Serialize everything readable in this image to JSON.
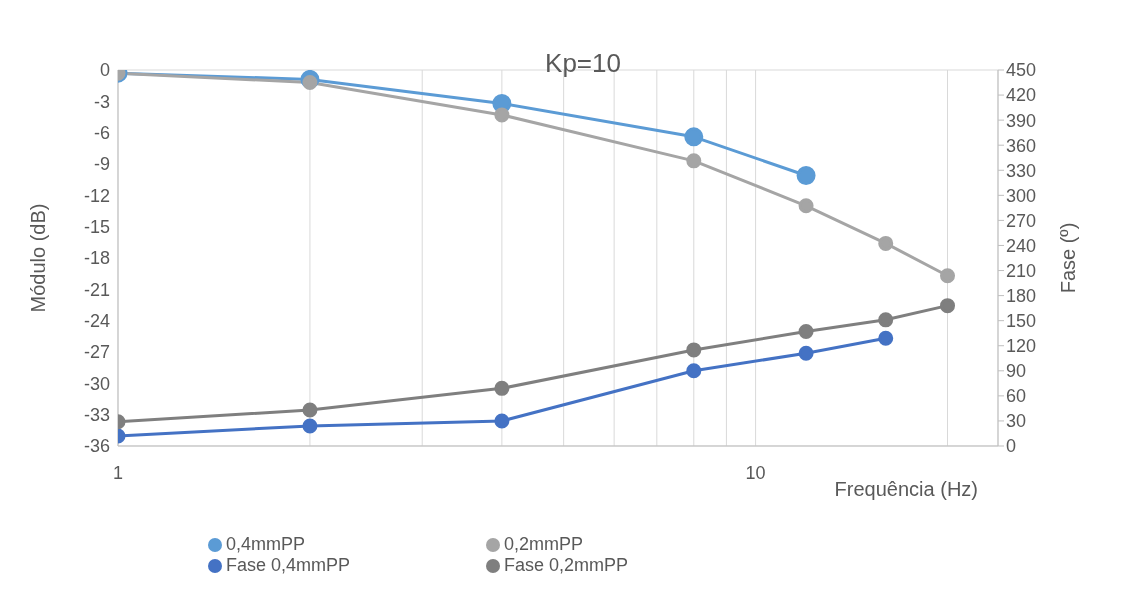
{
  "chart_data": {
    "type": "line",
    "title": "Kp=10",
    "xlabel": "Frequência (Hz)",
    "ylabel": "Módulo (dB)",
    "y2label": "Fase (º)",
    "x": [
      1,
      2,
      4,
      8,
      12,
      16,
      20
    ],
    "log": "x",
    "xlim": [
      1,
      24
    ],
    "xticks": [
      1,
      {
        "value": 2,
        "label": null
      },
      {
        "value": 3,
        "label": null
      },
      {
        "value": 4,
        "label": null
      },
      {
        "value": 5,
        "label": null
      },
      {
        "value": 6,
        "label": null
      },
      {
        "value": 7,
        "label": null
      },
      {
        "value": 8,
        "label": null
      },
      {
        "value": 9,
        "label": null
      },
      10,
      {
        "value": 20,
        "label": null
      }
    ],
    "ylim": [
      -36,
      0
    ],
    "yticks": [
      -36,
      -33,
      -30,
      -27,
      -24,
      -21,
      -18,
      -15,
      -12,
      -9,
      -6,
      -3,
      0
    ],
    "y2lim": [
      0,
      450
    ],
    "y2ticks": [
      0,
      30,
      60,
      90,
      120,
      150,
      180,
      210,
      240,
      270,
      300,
      330,
      360,
      390,
      420,
      450
    ],
    "grid": true,
    "legend": "bottom",
    "marker": "circle",
    "line_style": "solid",
    "series": [
      {
        "name": "0,4mmPP",
        "color": "#5b9bd5",
        "values": [
          -0.3,
          -0.9,
          -3.2,
          -6.4,
          -10.1,
          null,
          null
        ]
      },
      {
        "name": "0,2mmPP",
        "color": "#a5a5a5",
        "values": [
          -0.3,
          -1.2,
          -4.3,
          -8.7,
          -13.0,
          -16.6,
          -19.7
        ]
      },
      {
        "name": "Fase 0,4mmPP",
        "color": "#4472c4",
        "axis": "y2",
        "values": [
          12,
          24,
          30,
          90,
          111,
          129,
          null
        ]
      },
      {
        "name": "Fase 0,2mmPP",
        "color": "#7f7f7f",
        "axis": "y2",
        "values": [
          29,
          43,
          69,
          115,
          137,
          151,
          168
        ]
      }
    ]
  }
}
